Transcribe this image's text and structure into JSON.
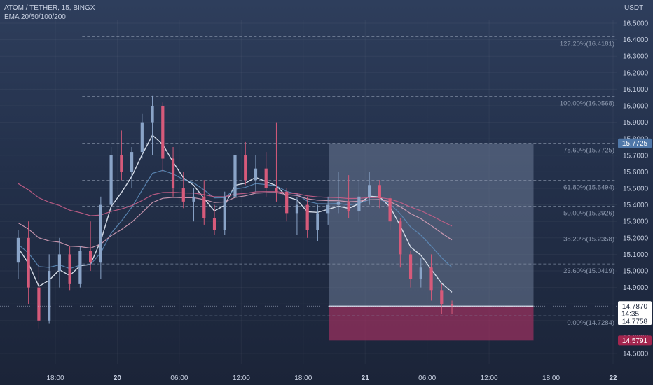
{
  "header": {
    "title": "ATOM / TETHER, 15, BINGX",
    "indicator": "EMA 20/50/100/200"
  },
  "price_axis_unit": "USDT",
  "colors": {
    "up": "#8aa4c8",
    "down": "#d65a7a",
    "ema20": "#e8eef8",
    "ema50": "#5d8bb8",
    "ema100": "#d7a0b8",
    "ema200": "#c85f88",
    "target_zone": "#6b7a96",
    "stop_zone": "#a0305f",
    "last_price_tag": "#ffffff",
    "target_tag": "#4f77a8",
    "stop_tag": "#a3264f"
  },
  "chart_data": {
    "type": "candlestick",
    "y_ticks": [
      "16.5000",
      "16.4000",
      "16.3000",
      "16.2000",
      "16.1000",
      "16.0000",
      "15.9000",
      "15.8000",
      "15.7000",
      "15.6000",
      "15.5000",
      "15.4000",
      "15.3000",
      "15.2000",
      "15.1000",
      "15.0000",
      "14.9000",
      "14.8000",
      "14.7000",
      "14.6000",
      "14.5000"
    ],
    "ylim": [
      14.45,
      16.6
    ],
    "x_ticks": [
      "18:00",
      "20",
      "06:00",
      "12:00",
      "18:00",
      "21",
      "06:00",
      "12:00",
      "18:00",
      "22"
    ],
    "x_tick_values": [
      2,
      8,
      14,
      20,
      26,
      32,
      38,
      44,
      50,
      56
    ],
    "xlim": [
      -3,
      60
    ],
    "fibonacci": [
      {
        "label": "127.20%(16.4181)",
        "value": 16.4181
      },
      {
        "label": "100.00%(16.0568)",
        "value": 16.0568
      },
      {
        "label": "78.60%(15.7725)",
        "value": 15.7725
      },
      {
        "label": "61.80%(15.5494)",
        "value": 15.5494
      },
      {
        "label": "50.00%(15.3926)",
        "value": 15.3926
      },
      {
        "label": "38.20%(15.2358)",
        "value": 15.2358
      },
      {
        "label": "23.60%(15.0419)",
        "value": 15.0419
      },
      {
        "label": "0.00%(14.7284)",
        "value": 14.7284
      }
    ],
    "fib_x_start": 4.6,
    "position": {
      "entry": 14.787,
      "target": 15.7725,
      "stop": 14.5791,
      "x_start": 28.5,
      "x_end": 48.3
    },
    "price_tags": {
      "target": "15.7725",
      "last": "14.7870",
      "countdown": "14:35",
      "prev": "14.7758",
      "stop": "14.5791"
    },
    "candles": [
      [
        15.05,
        15.25,
        14.95,
        15.2
      ],
      [
        15.2,
        15.3,
        14.8,
        14.9
      ],
      [
        14.9,
        15.05,
        14.65,
        14.7
      ],
      [
        14.7,
        15.1,
        14.68,
        15.0
      ],
      [
        15.0,
        15.2,
        14.9,
        15.1
      ],
      [
        15.1,
        15.15,
        14.88,
        14.92
      ],
      [
        14.92,
        15.15,
        14.9,
        15.12
      ],
      [
        15.12,
        15.3,
        15.0,
        15.05
      ],
      [
        15.05,
        15.45,
        14.95,
        15.4
      ],
      [
        15.4,
        15.75,
        15.35,
        15.7
      ],
      [
        15.7,
        15.85,
        15.55,
        15.6
      ],
      [
        15.6,
        15.75,
        15.5,
        15.72
      ],
      [
        15.72,
        15.95,
        15.68,
        15.9
      ],
      [
        15.9,
        16.06,
        15.7,
        16.0
      ],
      [
        16.0,
        16.02,
        15.6,
        15.68
      ],
      [
        15.68,
        15.75,
        15.45,
        15.5
      ],
      [
        15.5,
        15.6,
        15.38,
        15.42
      ],
      [
        15.42,
        15.5,
        15.3,
        15.45
      ],
      [
        15.45,
        15.55,
        15.28,
        15.32
      ],
      [
        15.32,
        15.4,
        15.22,
        15.25
      ],
      [
        15.25,
        15.48,
        15.22,
        15.45
      ],
      [
        15.45,
        15.75,
        15.4,
        15.7
      ],
      [
        15.7,
        15.78,
        15.52,
        15.55
      ],
      [
        15.55,
        15.7,
        15.48,
        15.62
      ],
      [
        15.62,
        15.72,
        15.45,
        15.5
      ],
      [
        15.5,
        15.9,
        15.42,
        15.48
      ],
      [
        15.48,
        15.5,
        15.3,
        15.35
      ],
      [
        15.35,
        15.45,
        15.22,
        15.4
      ],
      [
        15.4,
        15.45,
        15.2,
        15.25
      ],
      [
        15.25,
        15.4,
        15.18,
        15.35
      ],
      [
        15.35,
        15.45,
        15.28,
        15.4
      ],
      [
        15.4,
        15.6,
        15.35,
        15.42
      ],
      [
        15.42,
        15.58,
        15.32,
        15.36
      ],
      [
        15.36,
        15.55,
        15.3,
        15.45
      ],
      [
        15.45,
        15.6,
        15.4,
        15.52
      ],
      [
        15.52,
        15.55,
        15.38,
        15.44
      ],
      [
        15.44,
        15.46,
        15.25,
        15.3
      ],
      [
        15.3,
        15.32,
        15.02,
        15.1
      ],
      [
        15.1,
        15.12,
        14.9,
        14.95
      ],
      [
        14.95,
        15.08,
        14.9,
        15.02
      ],
      [
        15.02,
        15.1,
        14.82,
        14.88
      ],
      [
        14.88,
        14.92,
        14.74,
        14.8
      ],
      [
        14.8,
        14.82,
        14.74,
        14.79
      ]
    ]
  }
}
